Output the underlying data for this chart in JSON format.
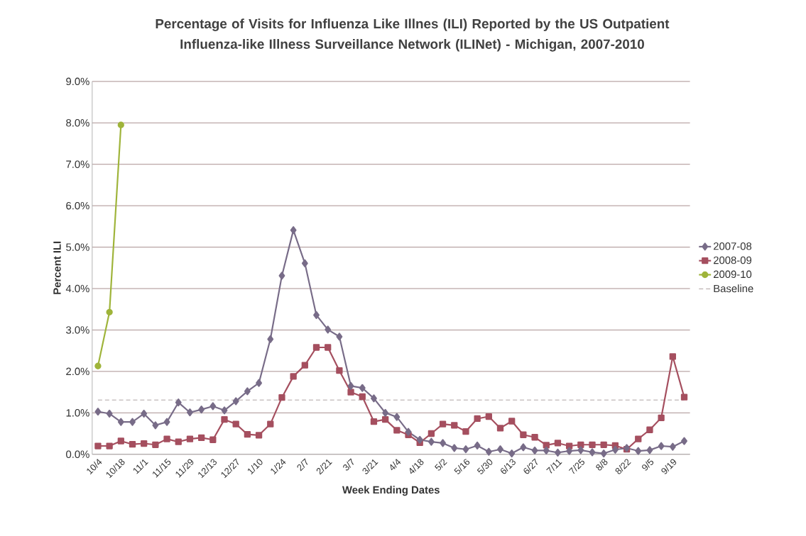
{
  "chart_data": {
    "type": "line",
    "title": "Percentage of Visits for Influenza Like Illnes (ILI) Reported by the US Outpatient Influenza-like Illness Surveillance Network (ILINet)  - Michigan, 2007-2010",
    "xlabel": "Week Ending Dates",
    "ylabel": "Percent ILI",
    "categories": [
      "10/4",
      null,
      "10/18",
      null,
      "11/1",
      null,
      "11/15",
      null,
      "11/29",
      null,
      "12/13",
      null,
      "12/27",
      null,
      "1/10",
      null,
      "1/24",
      null,
      "2/7",
      null,
      "2/21",
      null,
      "3/7",
      null,
      "3/21",
      null,
      "4/4",
      null,
      "4/18",
      null,
      "5/2",
      null,
      "5/16",
      null,
      "5/30",
      null,
      "6/13",
      null,
      "6/27",
      null,
      "7/11",
      null,
      "7/25",
      null,
      "8/8",
      null,
      "8/22",
      null,
      "9/5",
      null,
      "9/19",
      null
    ],
    "series": [
      {
        "name": "2007-08",
        "color": "#786c88",
        "marker": "diamond",
        "values": [
          1.03,
          0.98,
          0.78,
          0.78,
          0.98,
          0.7,
          0.78,
          1.25,
          1.01,
          1.08,
          1.16,
          1.06,
          1.28,
          1.52,
          1.72,
          2.78,
          4.31,
          5.41,
          4.61,
          3.36,
          3.01,
          2.84,
          1.65,
          1.6,
          1.35,
          1.0,
          0.9,
          0.54,
          0.35,
          0.3,
          0.27,
          0.15,
          0.12,
          0.21,
          0.06,
          0.12,
          0.02,
          0.17,
          0.09,
          0.09,
          0.04,
          0.08,
          0.1,
          0.05,
          0.02,
          0.11,
          0.15,
          0.08,
          0.1,
          0.2,
          0.18,
          0.32
        ]
      },
      {
        "name": "2008-09",
        "color": "#a54f5f",
        "marker": "square",
        "values": [
          0.2,
          0.2,
          0.32,
          0.24,
          0.26,
          0.23,
          0.37,
          0.3,
          0.37,
          0.4,
          0.35,
          0.84,
          0.73,
          0.48,
          0.46,
          0.73,
          1.37,
          1.88,
          2.15,
          2.58,
          2.58,
          2.02,
          1.5,
          1.39,
          0.79,
          0.84,
          0.58,
          0.47,
          0.28,
          0.5,
          0.73,
          0.7,
          0.55,
          0.86,
          0.91,
          0.63,
          0.8,
          0.47,
          0.41,
          0.22,
          0.27,
          0.2,
          0.23,
          0.23,
          0.23,
          0.21,
          0.12,
          0.37,
          0.59,
          0.88,
          2.36,
          1.38
        ]
      },
      {
        "name": "2009-10",
        "color": "#9fb43a",
        "marker": "circle",
        "values": [
          2.13,
          3.43,
          7.95,
          null,
          null,
          null,
          null,
          null,
          null,
          null,
          null,
          null,
          null,
          null,
          null,
          null,
          null,
          null,
          null,
          null,
          null,
          null,
          null,
          null,
          null,
          null,
          null,
          null,
          null,
          null,
          null,
          null,
          null,
          null,
          null,
          null,
          null,
          null,
          null,
          null,
          null,
          null,
          null,
          null,
          null,
          null,
          null,
          null,
          null,
          null,
          null,
          null
        ]
      }
    ],
    "ref_lines": [
      {
        "axis": "y",
        "value": 1.31,
        "label": "Baseline",
        "color": "#9a8a8a",
        "line_style": "dashed"
      }
    ],
    "ylim": [
      0,
      9
    ],
    "yticks": [
      {
        "value": 0,
        "label": "0.0%"
      },
      {
        "value": 1,
        "label": "1.0%"
      },
      {
        "value": 2,
        "label": "2.0%"
      },
      {
        "value": 3,
        "label": "3.0%"
      },
      {
        "value": 4,
        "label": "4.0%"
      },
      {
        "value": 5,
        "label": "5.0%"
      },
      {
        "value": 6,
        "label": "6.0%"
      },
      {
        "value": 7,
        "label": "7.0%"
      },
      {
        "value": 8,
        "label": "8.0%"
      },
      {
        "value": 9,
        "label": "9.0%"
      }
    ],
    "grid": "y",
    "legend": "right"
  }
}
